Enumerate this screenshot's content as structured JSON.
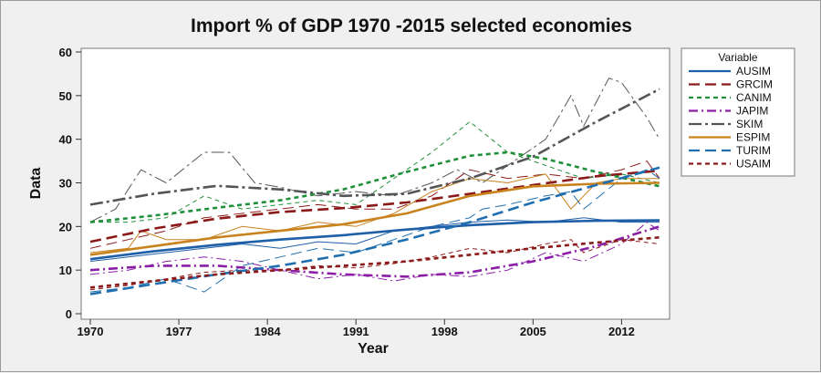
{
  "chart_data": {
    "type": "line",
    "title": "Import % of GDP 1970 -2015 selected economies",
    "xlabel": "Year",
    "ylabel": "Data",
    "xlim": [
      1970,
      2015
    ],
    "ylim": [
      0,
      60
    ],
    "x_ticks": [
      1970,
      1977,
      1984,
      1991,
      1998,
      2005,
      2012
    ],
    "x_tick_labels": [
      "1970",
      "1977",
      "1984",
      "1991",
      "1998",
      "2005",
      "2012"
    ],
    "y_ticks": [
      0,
      10,
      20,
      30,
      40,
      50,
      60
    ],
    "y_tick_labels": [
      "0",
      "10",
      "20",
      "30",
      "40",
      "50",
      "60"
    ],
    "legend": {
      "title": "Variable",
      "placement": "right"
    },
    "series": [
      {
        "name": "AUSIM",
        "color": "#1f5fa8",
        "dash": "solid",
        "observed": [
          [
            1970,
            12
          ],
          [
            1973,
            13
          ],
          [
            1976,
            14
          ],
          [
            1979,
            15
          ],
          [
            1982,
            16
          ],
          [
            1985,
            15
          ],
          [
            1988,
            16.5
          ],
          [
            1991,
            16
          ],
          [
            1994,
            19
          ],
          [
            1997,
            20
          ],
          [
            2000,
            21
          ],
          [
            2003,
            21.5
          ],
          [
            2006,
            21
          ],
          [
            2009,
            22
          ],
          [
            2012,
            21
          ],
          [
            2015,
            21
          ]
        ],
        "trend": [
          [
            1970,
            12.5
          ],
          [
            1975,
            14.3
          ],
          [
            1980,
            15.8
          ],
          [
            1985,
            17
          ],
          [
            1990,
            18
          ],
          [
            1995,
            19.3
          ],
          [
            2000,
            20.3
          ],
          [
            2005,
            21
          ],
          [
            2010,
            21.3
          ],
          [
            2015,
            21.4
          ]
        ]
      },
      {
        "name": "GRCIM",
        "color": "#8b1a1a",
        "dash": "long-dash",
        "observed": [
          [
            1970,
            15
          ],
          [
            1973,
            17
          ],
          [
            1976,
            19
          ],
          [
            1979,
            22
          ],
          [
            1982,
            23
          ],
          [
            1985,
            24
          ],
          [
            1988,
            25
          ],
          [
            1991,
            24
          ],
          [
            1994,
            24
          ],
          [
            1997,
            27
          ],
          [
            2000,
            33
          ],
          [
            2003,
            31
          ],
          [
            2006,
            32
          ],
          [
            2009,
            31
          ],
          [
            2012,
            33
          ],
          [
            2014,
            35
          ],
          [
            2015,
            31
          ]
        ],
        "trend": [
          [
            1970,
            16.5
          ],
          [
            1975,
            19.5
          ],
          [
            1980,
            21.8
          ],
          [
            1985,
            23.3
          ],
          [
            1990,
            24.2
          ],
          [
            1995,
            25.5
          ],
          [
            2000,
            27.5
          ],
          [
            2005,
            29.5
          ],
          [
            2010,
            31.5
          ],
          [
            2015,
            32.8
          ]
        ]
      },
      {
        "name": "CANIM",
        "color": "#1f8f3a",
        "dash": "short-dash",
        "observed": [
          [
            1970,
            21
          ],
          [
            1973,
            21
          ],
          [
            1976,
            22
          ],
          [
            1979,
            27
          ],
          [
            1982,
            24
          ],
          [
            1985,
            25
          ],
          [
            1988,
            26
          ],
          [
            1991,
            25
          ],
          [
            1994,
            31
          ],
          [
            1997,
            37
          ],
          [
            2000,
            44
          ],
          [
            2003,
            37
          ],
          [
            2006,
            34
          ],
          [
            2009,
            31
          ],
          [
            2012,
            32
          ],
          [
            2015,
            30
          ]
        ],
        "trend": [
          [
            1970,
            21
          ],
          [
            1975,
            22.5
          ],
          [
            1980,
            24.3
          ],
          [
            1985,
            26
          ],
          [
            1990,
            28.5
          ],
          [
            1995,
            32.5
          ],
          [
            2000,
            36.2
          ],
          [
            2003,
            37
          ],
          [
            2006,
            35.5
          ],
          [
            2010,
            32.5
          ],
          [
            2015,
            29.2
          ]
        ]
      },
      {
        "name": "JAPIM",
        "color": "#8a1fa6",
        "dash": "dash-dot",
        "observed": [
          [
            1970,
            9
          ],
          [
            1973,
            10
          ],
          [
            1976,
            12
          ],
          [
            1979,
            13
          ],
          [
            1982,
            12
          ],
          [
            1985,
            10
          ],
          [
            1988,
            8
          ],
          [
            1991,
            9
          ],
          [
            1994,
            7.5
          ],
          [
            1997,
            9
          ],
          [
            2000,
            8.5
          ],
          [
            2003,
            10
          ],
          [
            2006,
            14
          ],
          [
            2009,
            12
          ],
          [
            2012,
            16
          ],
          [
            2014,
            21
          ],
          [
            2015,
            19
          ]
        ],
        "trend": [
          [
            1970,
            10
          ],
          [
            1975,
            11
          ],
          [
            1980,
            11
          ],
          [
            1985,
            10
          ],
          [
            1990,
            9
          ],
          [
            1995,
            8.5
          ],
          [
            2000,
            9.5
          ],
          [
            2005,
            12
          ],
          [
            2010,
            15.5
          ],
          [
            2015,
            20
          ]
        ]
      },
      {
        "name": "SKIM",
        "color": "#555555",
        "dash": "dash-dot-long",
        "observed": [
          [
            1970,
            21
          ],
          [
            1972,
            24
          ],
          [
            1974,
            33
          ],
          [
            1976,
            30
          ],
          [
            1979,
            37
          ],
          [
            1981,
            37
          ],
          [
            1983,
            30
          ],
          [
            1985,
            29
          ],
          [
            1988,
            27
          ],
          [
            1991,
            28
          ],
          [
            1994,
            27
          ],
          [
            1997,
            30
          ],
          [
            1999,
            33
          ],
          [
            2001,
            30
          ],
          [
            2004,
            36
          ],
          [
            2006,
            40
          ],
          [
            2008,
            50
          ],
          [
            2009,
            43
          ],
          [
            2011,
            54
          ],
          [
            2012,
            53
          ],
          [
            2014,
            45
          ],
          [
            2015,
            40
          ]
        ],
        "trend": [
          [
            1970,
            25
          ],
          [
            1975,
            27.5
          ],
          [
            1980,
            29.3
          ],
          [
            1985,
            28.5
          ],
          [
            1990,
            27
          ],
          [
            1995,
            27.5
          ],
          [
            2000,
            31
          ],
          [
            2005,
            36
          ],
          [
            2010,
            44
          ],
          [
            2015,
            51.5
          ]
        ]
      },
      {
        "name": "ESPIM",
        "color": "#c8821e",
        "dash": "solid",
        "observed": [
          [
            1970,
            14
          ],
          [
            1973,
            15
          ],
          [
            1974,
            19
          ],
          [
            1976,
            17
          ],
          [
            1979,
            17
          ],
          [
            1982,
            20
          ],
          [
            1985,
            19
          ],
          [
            1988,
            21
          ],
          [
            1991,
            20
          ],
          [
            1994,
            23
          ],
          [
            1997,
            28
          ],
          [
            2000,
            31
          ],
          [
            2003,
            30
          ],
          [
            2006,
            32
          ],
          [
            2008,
            24
          ],
          [
            2010,
            30
          ],
          [
            2012,
            31
          ],
          [
            2015,
            31
          ]
        ],
        "trend": [
          [
            1970,
            13.5
          ],
          [
            1975,
            15.5
          ],
          [
            1980,
            17.5
          ],
          [
            1985,
            19
          ],
          [
            1990,
            20.5
          ],
          [
            1995,
            23
          ],
          [
            2000,
            27
          ],
          [
            2005,
            29.2
          ],
          [
            2010,
            29.8
          ],
          [
            2015,
            30
          ]
        ]
      },
      {
        "name": "TURIM",
        "color": "#1f6fb0",
        "dash": "long-dash",
        "observed": [
          [
            1970,
            5
          ],
          [
            1973,
            6
          ],
          [
            1976,
            8
          ],
          [
            1978,
            6
          ],
          [
            1979,
            5
          ],
          [
            1982,
            11
          ],
          [
            1985,
            13
          ],
          [
            1988,
            15
          ],
          [
            1991,
            14
          ],
          [
            1994,
            17
          ],
          [
            1997,
            20
          ],
          [
            2000,
            22
          ],
          [
            2001,
            24
          ],
          [
            2003,
            25
          ],
          [
            2006,
            27
          ],
          [
            2008,
            28
          ],
          [
            2009,
            24
          ],
          [
            2012,
            31
          ],
          [
            2014,
            33
          ],
          [
            2015,
            31
          ]
        ],
        "trend": [
          [
            1970,
            4.5
          ],
          [
            1975,
            6.8
          ],
          [
            1980,
            9
          ],
          [
            1985,
            11
          ],
          [
            1990,
            13.5
          ],
          [
            1995,
            17
          ],
          [
            2000,
            21
          ],
          [
            2005,
            25.5
          ],
          [
            2010,
            29.5
          ],
          [
            2015,
            33.5
          ]
        ]
      },
      {
        "name": "USAIM",
        "color": "#8b1a1a",
        "dash": "short-dash",
        "observed": [
          [
            1970,
            5.5
          ],
          [
            1973,
            6.5
          ],
          [
            1976,
            8
          ],
          [
            1979,
            9.5
          ],
          [
            1982,
            10
          ],
          [
            1985,
            10
          ],
          [
            1988,
            11
          ],
          [
            1991,
            10.5
          ],
          [
            1994,
            11.5
          ],
          [
            1997,
            13
          ],
          [
            2000,
            15
          ],
          [
            2003,
            14
          ],
          [
            2006,
            16
          ],
          [
            2008,
            17
          ],
          [
            2009,
            14
          ],
          [
            2012,
            17
          ],
          [
            2015,
            16
          ]
        ],
        "trend": [
          [
            1970,
            6
          ],
          [
            1975,
            7.5
          ],
          [
            1980,
            9
          ],
          [
            1985,
            10
          ],
          [
            1990,
            11
          ],
          [
            1995,
            12
          ],
          [
            2000,
            13.5
          ],
          [
            2005,
            15
          ],
          [
            2010,
            16.3
          ],
          [
            2015,
            17.5
          ]
        ]
      }
    ]
  }
}
